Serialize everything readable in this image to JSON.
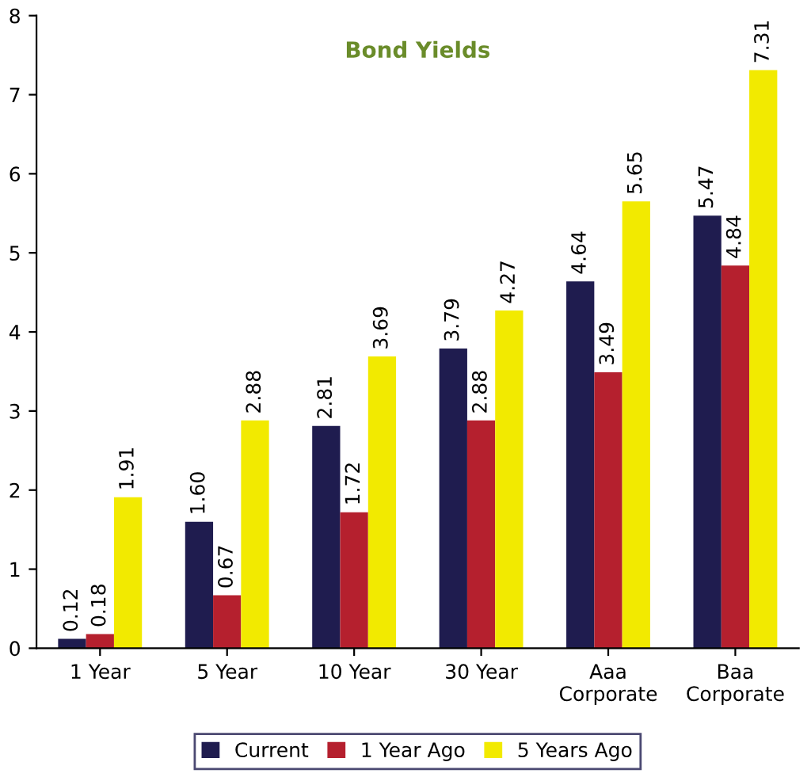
{
  "chart_data": {
    "type": "bar",
    "title": "Bond Yields",
    "categories": [
      "1 Year",
      "5 Year",
      "10 Year",
      "30 Year",
      "Aaa\nCorporate",
      "Baa\nCorporate"
    ],
    "series": [
      {
        "name": "Current",
        "color": "#1f1c4f",
        "values": [
          0.12,
          1.6,
          2.81,
          3.79,
          4.64,
          5.47
        ],
        "value_labels": [
          "0.12",
          "1.60",
          "2.81",
          "3.79",
          "4.64",
          "5.47"
        ]
      },
      {
        "name": "1 Year Ago",
        "color": "#b5202e",
        "values": [
          0.18,
          0.67,
          1.72,
          2.88,
          3.49,
          4.84
        ],
        "value_labels": [
          "0.18",
          "0.67",
          "1.72",
          "2.88",
          "3.49",
          "4.84"
        ]
      },
      {
        "name": "5 Years Ago",
        "color": "#f2ea00",
        "values": [
          1.91,
          2.88,
          3.69,
          4.27,
          5.65,
          7.31
        ],
        "value_labels": [
          "1.91",
          "2.88",
          "3.69",
          "4.27",
          "5.65",
          "7.31"
        ]
      }
    ],
    "ylim": [
      0,
      8
    ],
    "yticks": [
      0,
      1,
      2,
      3,
      4,
      5,
      6,
      7,
      8
    ],
    "grid": false,
    "legend": "bottom"
  }
}
